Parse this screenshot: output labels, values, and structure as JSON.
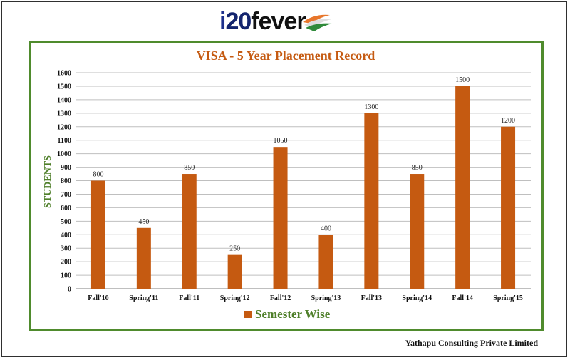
{
  "logo": {
    "i_part": "i",
    "num_part": "20",
    "word_part": "fever"
  },
  "footer": "Yathapu Consulting Private Limited",
  "colors": {
    "bar": "#c55a11",
    "title": "#c55a11",
    "ylabel": "#4f7f2a",
    "border": "#4f8b2d",
    "grid": "#bfbfbf"
  },
  "chart_data": {
    "type": "bar",
    "title": "VISA - 5 Year Placement Record",
    "ylabel": "STUDENTS",
    "xlabel": "",
    "categories": [
      "Fall'10",
      "Spring'11",
      "Fall'11",
      "Spring'12",
      "Fall'12",
      "Spring'13",
      "Fall'13",
      "Spring'14",
      "Fall'14",
      "Spring'15"
    ],
    "series": [
      {
        "name": "Semester Wise",
        "values": [
          800,
          450,
          850,
          250,
          1050,
          400,
          1300,
          850,
          1500,
          1200
        ]
      }
    ],
    "ylim": [
      0,
      1600
    ],
    "yticks": [
      0,
      100,
      200,
      300,
      400,
      500,
      600,
      700,
      800,
      900,
      1000,
      1100,
      1200,
      1300,
      1400,
      1500,
      1600
    ],
    "data_labels": [
      "800",
      "450",
      "850",
      "250",
      "1050",
      "400",
      "1300",
      "850",
      "1500",
      "1200"
    ],
    "grid": true,
    "legend": "bottom"
  }
}
